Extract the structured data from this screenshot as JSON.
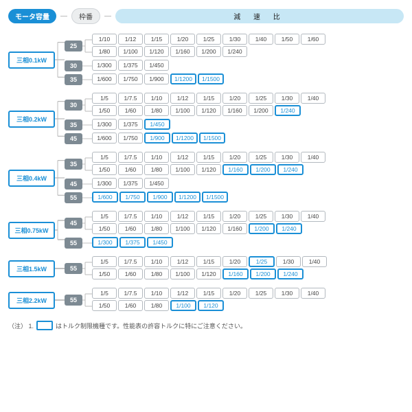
{
  "header": {
    "motor_capacity": "モータ容量",
    "frame_no": "枠番",
    "reduction_ratio": "減 速 比"
  },
  "groups": [
    {
      "motor": "三相0.1kW",
      "frames": [
        {
          "num": "25",
          "rows": [
            [
              {
                "v": "1/10"
              },
              {
                "v": "1/12"
              },
              {
                "v": "1/15"
              },
              {
                "v": "1/20"
              },
              {
                "v": "1/25"
              },
              {
                "v": "1/30"
              },
              {
                "v": "1/40"
              },
              {
                "v": "1/50"
              },
              {
                "v": "1/60"
              }
            ],
            [
              {
                "v": "1/80"
              },
              {
                "v": "1/100"
              },
              {
                "v": "1/120"
              },
              {
                "v": "1/160"
              },
              {
                "v": "1/200"
              },
              {
                "v": "1/240"
              }
            ]
          ]
        },
        {
          "num": "30",
          "rows": [
            [
              {
                "v": "1/300"
              },
              {
                "v": "1/375"
              },
              {
                "v": "1/450"
              }
            ]
          ]
        },
        {
          "num": "35",
          "rows": [
            [
              {
                "v": "1/600"
              },
              {
                "v": "1/750"
              },
              {
                "v": "1/900"
              },
              {
                "v": "1/1200",
                "hl": true
              },
              {
                "v": "1/1500",
                "hl": true
              }
            ]
          ]
        }
      ]
    },
    {
      "motor": "三相0.2kW",
      "frames": [
        {
          "num": "30",
          "rows": [
            [
              {
                "v": "1/5"
              },
              {
                "v": "1/7.5"
              },
              {
                "v": "1/10"
              },
              {
                "v": "1/12"
              },
              {
                "v": "1/15"
              },
              {
                "v": "1/20"
              },
              {
                "v": "1/25"
              },
              {
                "v": "1/30"
              },
              {
                "v": "1/40"
              }
            ],
            [
              {
                "v": "1/50"
              },
              {
                "v": "1/60"
              },
              {
                "v": "1/80"
              },
              {
                "v": "1/100"
              },
              {
                "v": "1/120"
              },
              {
                "v": "1/160"
              },
              {
                "v": "1/200"
              },
              {
                "v": "1/240",
                "hl": true
              }
            ]
          ]
        },
        {
          "num": "35",
          "rows": [
            [
              {
                "v": "1/300"
              },
              {
                "v": "1/375"
              },
              {
                "v": "1/450",
                "hl": true
              }
            ]
          ]
        },
        {
          "num": "45",
          "rows": [
            [
              {
                "v": "1/600"
              },
              {
                "v": "1/750"
              },
              {
                "v": "1/900",
                "hl": true
              },
              {
                "v": "1/1200",
                "hl": true
              },
              {
                "v": "1/1500",
                "hl": true
              }
            ]
          ]
        }
      ]
    },
    {
      "motor": "三相0.4kW",
      "frames": [
        {
          "num": "35",
          "rows": [
            [
              {
                "v": "1/5"
              },
              {
                "v": "1/7.5"
              },
              {
                "v": "1/10"
              },
              {
                "v": "1/12"
              },
              {
                "v": "1/15"
              },
              {
                "v": "1/20"
              },
              {
                "v": "1/25"
              },
              {
                "v": "1/30"
              },
              {
                "v": "1/40"
              }
            ],
            [
              {
                "v": "1/50"
              },
              {
                "v": "1/60"
              },
              {
                "v": "1/80"
              },
              {
                "v": "1/100"
              },
              {
                "v": "1/120"
              },
              {
                "v": "1/160",
                "hl": true
              },
              {
                "v": "1/200",
                "hl": true
              },
              {
                "v": "1/240",
                "hl": true
              }
            ]
          ]
        },
        {
          "num": "45",
          "rows": [
            [
              {
                "v": "1/300"
              },
              {
                "v": "1/375"
              },
              {
                "v": "1/450"
              }
            ]
          ]
        },
        {
          "num": "55",
          "rows": [
            [
              {
                "v": "1/600",
                "hl": true
              },
              {
                "v": "1/750",
                "hl": true
              },
              {
                "v": "1/900",
                "hl": true
              },
              {
                "v": "1/1200",
                "hl": true
              },
              {
                "v": "1/1500",
                "hl": true
              }
            ]
          ]
        }
      ]
    },
    {
      "motor": "三相0.75kW",
      "frames": [
        {
          "num": "45",
          "rows": [
            [
              {
                "v": "1/5"
              },
              {
                "v": "1/7.5"
              },
              {
                "v": "1/10"
              },
              {
                "v": "1/12"
              },
              {
                "v": "1/15"
              },
              {
                "v": "1/20"
              },
              {
                "v": "1/25"
              },
              {
                "v": "1/30"
              },
              {
                "v": "1/40"
              }
            ],
            [
              {
                "v": "1/50"
              },
              {
                "v": "1/60"
              },
              {
                "v": "1/80"
              },
              {
                "v": "1/100"
              },
              {
                "v": "1/120"
              },
              {
                "v": "1/160"
              },
              {
                "v": "1/200",
                "hl": true
              },
              {
                "v": "1/240",
                "hl": true
              }
            ]
          ]
        },
        {
          "num": "55",
          "rows": [
            [
              {
                "v": "1/300",
                "hl": true
              },
              {
                "v": "1/375",
                "hl": true
              },
              {
                "v": "1/450",
                "hl": true
              }
            ]
          ]
        }
      ]
    },
    {
      "motor": "三相1.5kW",
      "frames": [
        {
          "num": "55",
          "rows": [
            [
              {
                "v": "1/5"
              },
              {
                "v": "1/7.5"
              },
              {
                "v": "1/10"
              },
              {
                "v": "1/12"
              },
              {
                "v": "1/15"
              },
              {
                "v": "1/20"
              },
              {
                "v": "1/25",
                "hl": true
              },
              {
                "v": "1/30"
              },
              {
                "v": "1/40"
              }
            ],
            [
              {
                "v": "1/50"
              },
              {
                "v": "1/60"
              },
              {
                "v": "1/80"
              },
              {
                "v": "1/100"
              },
              {
                "v": "1/120"
              },
              {
                "v": "1/160",
                "hl": true
              },
              {
                "v": "1/200",
                "hl": true
              },
              {
                "v": "1/240",
                "hl": true
              }
            ]
          ]
        }
      ]
    },
    {
      "motor": "三相2.2kW",
      "frames": [
        {
          "num": "55",
          "rows": [
            [
              {
                "v": "1/5"
              },
              {
                "v": "1/7.5"
              },
              {
                "v": "1/10"
              },
              {
                "v": "1/12"
              },
              {
                "v": "1/15"
              },
              {
                "v": "1/20"
              },
              {
                "v": "1/25"
              },
              {
                "v": "1/30"
              },
              {
                "v": "1/40"
              }
            ],
            [
              {
                "v": "1/50"
              },
              {
                "v": "1/60"
              },
              {
                "v": "1/80"
              },
              {
                "v": "1/100",
                "hl": true
              },
              {
                "v": "1/120",
                "hl": true
              }
            ]
          ]
        }
      ]
    }
  ],
  "note": {
    "prefix": "（注） 1.",
    "text": "はトルク制限機種です。性能表の許容トルクに特にご注意ください。"
  },
  "style": {
    "accent": "#1a8fd6",
    "frame_bg": "#7d8a93",
    "ratio_border": "#b3b9bf",
    "header_cyan": "#c7e7f5"
  }
}
